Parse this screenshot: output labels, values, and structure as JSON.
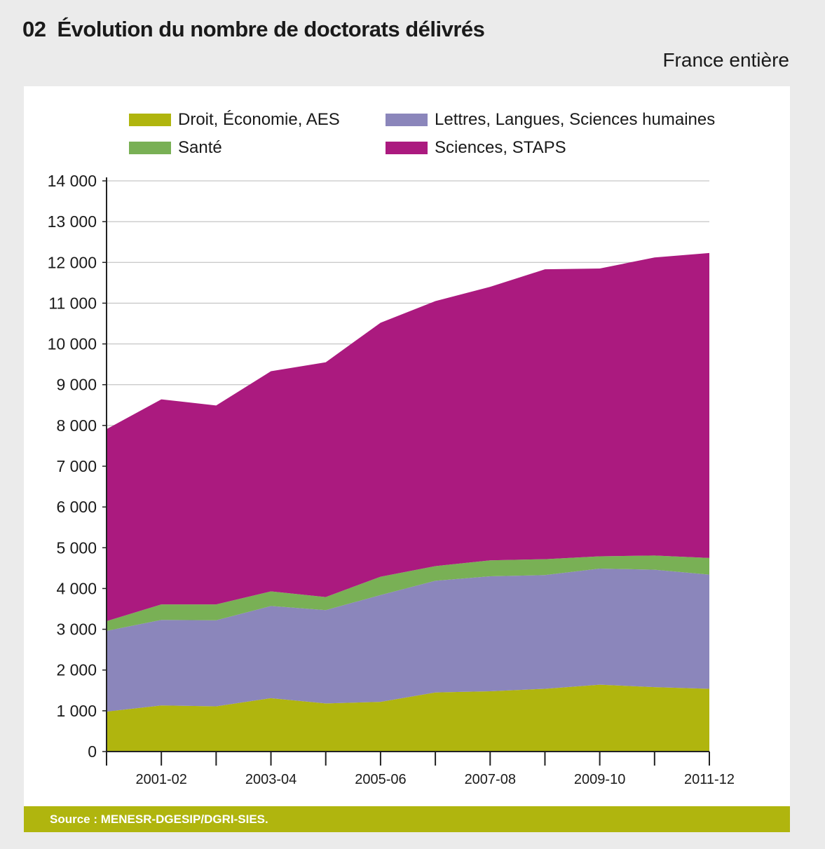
{
  "figure": {
    "number": "02",
    "title": "Évolution du nombre de doctorats délivrés",
    "subtitle": "France entière",
    "source": "Source : MENESR-DGESIP/DGRI-SIES."
  },
  "colors": {
    "page_background": "#ebebeb",
    "panel_background": "#ffffff",
    "source_bar": "#b0b50e",
    "grid": "#b8b8b8"
  },
  "chart_data": {
    "type": "area",
    "stacked": true,
    "x": [
      "2000-01",
      "2001-02",
      "2002-03",
      "2003-04",
      "2004-05",
      "2005-06",
      "2006-07",
      "2007-08",
      "2008-09",
      "2009-10",
      "2010-11",
      "2011-12"
    ],
    "x_tick_labels": [
      "",
      "2001-02",
      "",
      "2003-04",
      "",
      "2005-06",
      "",
      "2007-08",
      "",
      "2009-10",
      "",
      "2011-12"
    ],
    "ylim": [
      0,
      14000
    ],
    "y_ticks": [
      0,
      1000,
      2000,
      3000,
      4000,
      5000,
      6000,
      7000,
      8000,
      9000,
      10000,
      11000,
      12000,
      13000,
      14000
    ],
    "y_tick_labels": [
      "0",
      "1 000",
      "2 000",
      "3 000",
      "4 000",
      "5 000",
      "6 000",
      "7 000",
      "8 000",
      "9 000",
      "10 000",
      "11 000",
      "12 000",
      "13 000",
      "14 000"
    ],
    "grid": "horizontal",
    "legend_position": "top",
    "series": [
      {
        "name": "Droit, Économie, AES",
        "color": "#b0b50e",
        "values": [
          980,
          1130,
          1110,
          1310,
          1180,
          1220,
          1450,
          1480,
          1540,
          1640,
          1580,
          1540
        ]
      },
      {
        "name": "Lettres, Langues, Sciences humaines",
        "color": "#8b86bb",
        "values": [
          1980,
          2100,
          2110,
          2260,
          2290,
          2620,
          2740,
          2820,
          2790,
          2850,
          2880,
          2800
        ]
      },
      {
        "name": "Santé",
        "color": "#79b055",
        "values": [
          240,
          380,
          390,
          360,
          320,
          450,
          360,
          390,
          390,
          300,
          350,
          410
        ]
      },
      {
        "name": "Sciences, STAPS",
        "color": "#ab1a7f",
        "values": [
          4710,
          5030,
          4880,
          5400,
          5760,
          6230,
          6500,
          6710,
          7110,
          7060,
          7310,
          7480
        ]
      }
    ]
  }
}
